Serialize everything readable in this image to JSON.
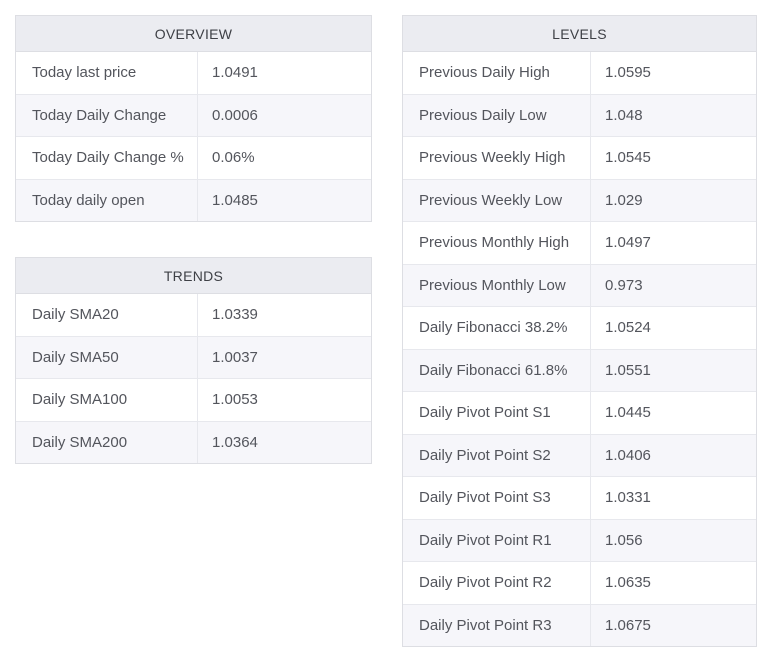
{
  "colors": {
    "page_bg": "#ffffff",
    "header_bg": "#ebecf1",
    "stripe_bg": "#f6f6fa",
    "border": "#dddee3",
    "row_border": "#e7e8ed",
    "header_text": "#3e4046",
    "row_text": "#53555c"
  },
  "tables": {
    "overview": {
      "title": "OVERVIEW",
      "rows": [
        {
          "label": "Today last price",
          "value": "1.0491"
        },
        {
          "label": "Today Daily Change",
          "value": "0.0006"
        },
        {
          "label": "Today Daily Change %",
          "value": "0.06%"
        },
        {
          "label": "Today daily open",
          "value": "1.0485"
        }
      ]
    },
    "trends": {
      "title": "TRENDS",
      "rows": [
        {
          "label": "Daily SMA20",
          "value": "1.0339"
        },
        {
          "label": "Daily SMA50",
          "value": "1.0037"
        },
        {
          "label": "Daily SMA100",
          "value": "1.0053"
        },
        {
          "label": "Daily SMA200",
          "value": "1.0364"
        }
      ]
    },
    "levels": {
      "title": "LEVELS",
      "rows": [
        {
          "label": "Previous Daily High",
          "value": "1.0595"
        },
        {
          "label": "Previous Daily Low",
          "value": "1.048"
        },
        {
          "label": "Previous Weekly High",
          "value": "1.0545"
        },
        {
          "label": "Previous Weekly Low",
          "value": "1.029"
        },
        {
          "label": "Previous Monthly High",
          "value": "1.0497"
        },
        {
          "label": "Previous Monthly Low",
          "value": "0.973"
        },
        {
          "label": "Daily Fibonacci 38.2%",
          "value": "1.0524"
        },
        {
          "label": "Daily Fibonacci 61.8%",
          "value": "1.0551"
        },
        {
          "label": "Daily Pivot Point S1",
          "value": "1.0445"
        },
        {
          "label": "Daily Pivot Point S2",
          "value": "1.0406"
        },
        {
          "label": "Daily Pivot Point S3",
          "value": "1.0331"
        },
        {
          "label": "Daily Pivot Point R1",
          "value": "1.056"
        },
        {
          "label": "Daily Pivot Point R2",
          "value": "1.0635"
        },
        {
          "label": "Daily Pivot Point R3",
          "value": "1.0675"
        }
      ]
    }
  }
}
